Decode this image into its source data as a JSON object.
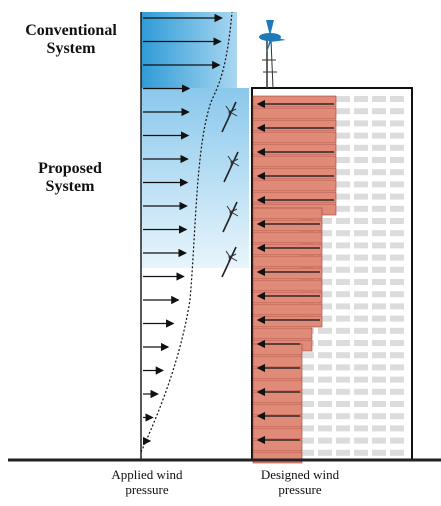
{
  "labels": {
    "conventional": "Conventional System",
    "proposed": "Proposed System",
    "applied": "Applied wind pressure",
    "designed": "Designed wind pressure"
  },
  "colors": {
    "blue_dark": "#3aa3db",
    "blue_light": "#d4ebf8",
    "brick": "#e08a78",
    "brick_edge": "#a0443a",
    "window": "#dcdcdc",
    "ground": "#222222"
  },
  "icons": [
    "wind-turbine-icon",
    "facade-turbine-icon"
  ]
}
